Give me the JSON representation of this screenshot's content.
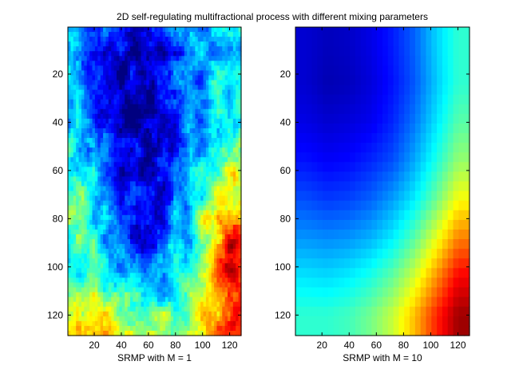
{
  "figure": {
    "title": "2D self-regulating multifractional process with different mixing parameters",
    "colormap": "jet",
    "background": "#ffffff"
  },
  "chart_data": [
    {
      "type": "heatmap",
      "name": "panel-left",
      "xlabel": "SRMP with M = 1",
      "ylabel": "",
      "grid": false,
      "xlim": [
        0.5,
        128.5
      ],
      "ylim": [
        0.5,
        128.5
      ],
      "y_reversed": true,
      "x_ticks": [
        20,
        40,
        60,
        80,
        100,
        120
      ],
      "y_ticks": [
        20,
        40,
        60,
        80,
        100,
        120
      ],
      "value_range": [
        0,
        1
      ],
      "description_of_field": "rough random field; low values (dark blue) concentrated in a blob centered near x=55,y=55; high values (red) near bottom-right corner and bottom-left area",
      "sample_grid": {
        "x": [
          8,
          24,
          40,
          56,
          72,
          88,
          104,
          120
        ],
        "y": [
          8,
          24,
          40,
          56,
          72,
          88,
          104,
          120
        ],
        "values": [
          [
            0.3,
            0.22,
            0.1,
            0.12,
            0.15,
            0.22,
            0.32,
            0.35
          ],
          [
            0.28,
            0.15,
            0.06,
            0.05,
            0.08,
            0.18,
            0.3,
            0.38
          ],
          [
            0.3,
            0.15,
            0.05,
            0.05,
            0.08,
            0.17,
            0.32,
            0.4
          ],
          [
            0.4,
            0.2,
            0.1,
            0.1,
            0.12,
            0.2,
            0.38,
            0.5
          ],
          [
            0.45,
            0.32,
            0.15,
            0.1,
            0.15,
            0.3,
            0.45,
            0.7
          ],
          [
            0.42,
            0.35,
            0.2,
            0.12,
            0.2,
            0.35,
            0.55,
            0.85
          ],
          [
            0.45,
            0.4,
            0.35,
            0.28,
            0.3,
            0.45,
            0.62,
            0.88
          ],
          [
            0.7,
            0.6,
            0.55,
            0.45,
            0.45,
            0.55,
            0.72,
            0.85
          ]
        ]
      }
    },
    {
      "type": "heatmap",
      "name": "panel-right",
      "xlabel": "SRMP with M = 10",
      "ylabel": "",
      "grid": false,
      "xlim": [
        0.5,
        128.5
      ],
      "ylim": [
        0.5,
        128.5
      ],
      "y_reversed": true,
      "x_ticks": [
        20,
        40,
        60,
        80,
        100,
        120
      ],
      "y_ticks": [
        20,
        40,
        60,
        80,
        100,
        120
      ],
      "value_range": [
        0,
        1
      ],
      "description_of_field": "smooth radial gradient; minimum (dark blue) near x=25,y=20; maximum (dark red) at bottom-right corner",
      "sample_grid": {
        "x": [
          8,
          24,
          40,
          56,
          72,
          88,
          104,
          120
        ],
        "y": [
          8,
          24,
          40,
          56,
          72,
          88,
          104,
          120
        ],
        "values": [
          [
            0.08,
            0.06,
            0.07,
            0.1,
            0.15,
            0.22,
            0.33,
            0.42
          ],
          [
            0.08,
            0.05,
            0.06,
            0.09,
            0.14,
            0.21,
            0.32,
            0.42
          ],
          [
            0.1,
            0.08,
            0.09,
            0.11,
            0.16,
            0.24,
            0.35,
            0.46
          ],
          [
            0.14,
            0.12,
            0.13,
            0.16,
            0.2,
            0.29,
            0.4,
            0.52
          ],
          [
            0.2,
            0.18,
            0.19,
            0.22,
            0.28,
            0.36,
            0.48,
            0.62
          ],
          [
            0.27,
            0.26,
            0.27,
            0.3,
            0.36,
            0.46,
            0.6,
            0.75
          ],
          [
            0.35,
            0.34,
            0.36,
            0.4,
            0.47,
            0.58,
            0.73,
            0.88
          ],
          [
            0.42,
            0.42,
            0.44,
            0.49,
            0.57,
            0.69,
            0.84,
            0.97
          ]
        ]
      }
    }
  ]
}
